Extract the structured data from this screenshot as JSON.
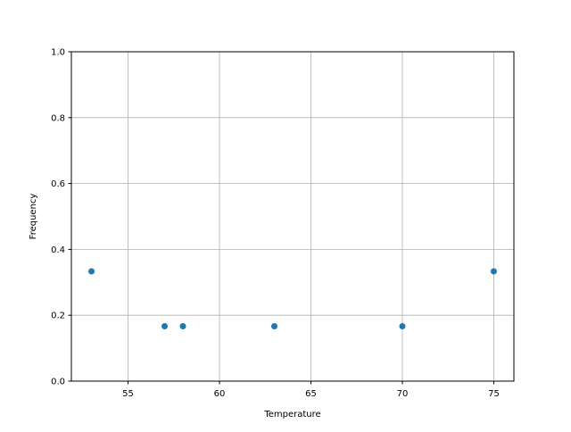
{
  "chart_data": {
    "type": "scatter",
    "title": "",
    "xlabel": "Temperature",
    "ylabel": "Frequency",
    "xlim": [
      51.9,
      76.1
    ],
    "ylim": [
      0,
      1
    ],
    "xticks": [
      55,
      60,
      65,
      70,
      75
    ],
    "yticks": [
      0.0,
      0.2,
      0.4,
      0.6,
      0.8,
      1.0
    ],
    "xtick_labels": [
      "55",
      "60",
      "65",
      "70",
      "75"
    ],
    "ytick_labels": [
      "0.0",
      "0.2",
      "0.4",
      "0.6",
      "0.8",
      "1.0"
    ],
    "grid": true,
    "color": "#1f77b4",
    "points": [
      {
        "x": 53,
        "y": 0.3333
      },
      {
        "x": 57,
        "y": 0.1667
      },
      {
        "x": 58,
        "y": 0.1667
      },
      {
        "x": 63,
        "y": 0.1667
      },
      {
        "x": 70,
        "y": 0.1667
      },
      {
        "x": 75,
        "y": 0.3333
      }
    ]
  }
}
